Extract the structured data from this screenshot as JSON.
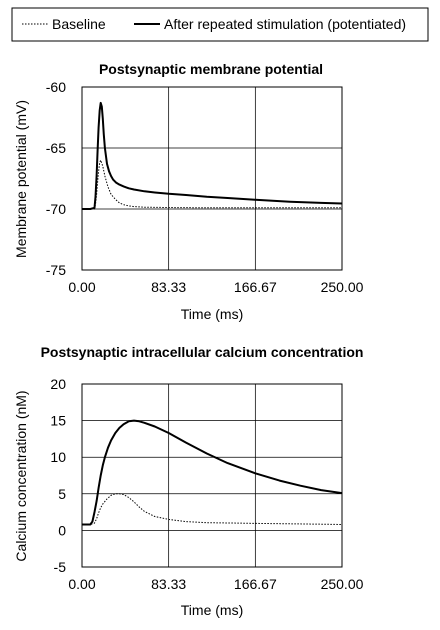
{
  "legend": {
    "items": [
      {
        "label": "Baseline",
        "style": "dotted"
      },
      {
        "label": "After repeated stimulation (potentiated)",
        "style": "solid"
      }
    ]
  },
  "chart_data": [
    {
      "type": "line",
      "title": "Postsynaptic membrane potential",
      "xlabel": "Time (ms)",
      "ylabel": "Membrane potential (mV)",
      "xlim": [
        0,
        250
      ],
      "ylim": [
        -75,
        -60
      ],
      "xticks": [
        0,
        83.33,
        166.67,
        250
      ],
      "xtick_labels": [
        "0.00",
        "83.33",
        "166.67",
        "250.00"
      ],
      "yticks": [
        -60,
        -65,
        -70,
        -75
      ],
      "ytick_labels": [
        "-60",
        "-65",
        "-70",
        "-75"
      ],
      "grid": "vertical at x ticks, horizontal at y ticks",
      "series": [
        {
          "name": "Baseline",
          "style": "dotted",
          "x": [
            0,
            8,
            12,
            13,
            14,
            15,
            16,
            17,
            18,
            20,
            22,
            25,
            28,
            32,
            36,
            40,
            45,
            50,
            60,
            80,
            120,
            166.67,
            200,
            250
          ],
          "y": [
            -70.0,
            -70.0,
            -70.0,
            -69.6,
            -68.8,
            -67.8,
            -66.9,
            -66.2,
            -66.0,
            -66.5,
            -67.3,
            -68.2,
            -68.8,
            -69.2,
            -69.5,
            -69.65,
            -69.75,
            -69.8,
            -69.85,
            -69.88,
            -69.9,
            -69.9,
            -69.9,
            -69.9
          ]
        },
        {
          "name": "After repeated stimulation (potentiated)",
          "style": "solid",
          "x": [
            0,
            8,
            12,
            13,
            14,
            15,
            16,
            17,
            18,
            19,
            20,
            21,
            22,
            24,
            26,
            28,
            30,
            33,
            36,
            40,
            45,
            50,
            60,
            70,
            83.33,
            100,
            120,
            140,
            166.67,
            200,
            230,
            250
          ],
          "y": [
            -70.0,
            -70.0,
            -69.9,
            -69.0,
            -67.3,
            -65.2,
            -63.3,
            -61.9,
            -61.3,
            -61.6,
            -62.6,
            -63.9,
            -65.0,
            -66.3,
            -66.9,
            -67.3,
            -67.6,
            -67.85,
            -68.0,
            -68.15,
            -68.3,
            -68.4,
            -68.55,
            -68.65,
            -68.75,
            -68.85,
            -69.0,
            -69.1,
            -69.25,
            -69.4,
            -69.5,
            -69.55
          ]
        }
      ]
    },
    {
      "type": "line",
      "title": "Postsynaptic intracellular calcium concentration",
      "xlabel": "Time (ms)",
      "ylabel": "Calcium concentration (nM)",
      "xlim": [
        0,
        250
      ],
      "ylim": [
        -5,
        20
      ],
      "xticks": [
        0,
        83.33,
        166.67,
        250
      ],
      "xtick_labels": [
        "0.00",
        "83.33",
        "166.67",
        "250.00"
      ],
      "yticks": [
        20,
        15,
        10,
        5,
        0,
        -5
      ],
      "ytick_labels": [
        "20",
        "15",
        "10",
        "5",
        "0",
        "-5"
      ],
      "grid": "vertical at x ticks, horizontal at y ticks",
      "series": [
        {
          "name": "Baseline",
          "style": "dotted",
          "x": [
            0,
            8,
            12,
            14,
            16,
            18,
            20,
            24,
            28,
            32,
            36,
            40,
            45,
            50,
            55,
            60,
            70,
            83.33,
            100,
            120,
            150,
            166.67,
            200,
            230,
            250
          ],
          "y": [
            0.8,
            0.8,
            1.0,
            1.6,
            2.4,
            3.1,
            3.6,
            4.3,
            4.8,
            5.0,
            5.0,
            4.9,
            4.5,
            3.9,
            3.2,
            2.6,
            1.9,
            1.5,
            1.2,
            1.05,
            1.0,
            0.95,
            0.9,
            0.85,
            0.8
          ]
        },
        {
          "name": "After repeated stimulation (potentiated)",
          "style": "solid",
          "x": [
            0,
            8,
            10,
            12,
            14,
            16,
            18,
            20,
            22,
            25,
            28,
            32,
            36,
            40,
            45,
            50,
            55,
            60,
            70,
            83.33,
            100,
            120,
            140,
            166.67,
            190,
            210,
            230,
            250
          ],
          "y": [
            0.8,
            0.8,
            1.2,
            2.5,
            4.0,
            5.8,
            7.5,
            8.9,
            10.0,
            11.3,
            12.3,
            13.3,
            14.0,
            14.5,
            14.9,
            15.0,
            14.9,
            14.7,
            14.2,
            13.3,
            12.0,
            10.5,
            9.2,
            7.8,
            6.8,
            6.1,
            5.5,
            5.1
          ]
        }
      ]
    }
  ]
}
